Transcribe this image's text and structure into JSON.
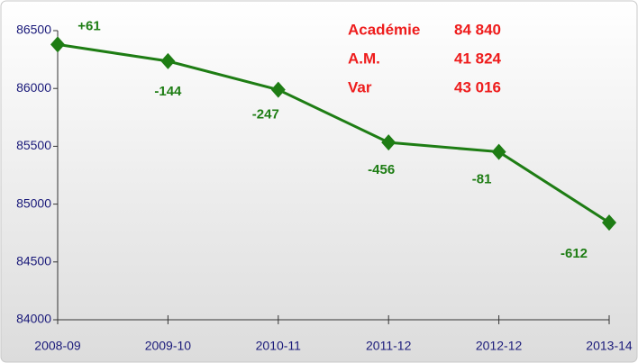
{
  "chart_data": {
    "type": "line",
    "categories": [
      "2008-09",
      "2009-10",
      "2010-11",
      "2011-12",
      "2012-12",
      "2013-14"
    ],
    "series": [
      {
        "name": "Académie",
        "color": "#1e7d14",
        "values": [
          86380,
          86236,
          85989,
          85533,
          85452,
          84840
        ]
      }
    ],
    "annotations": [
      "+61",
      "-144",
      "-247",
      "-456",
      "-81",
      "-612"
    ],
    "info": [
      {
        "label": "Académie",
        "value": "84 840"
      },
      {
        "label": "A.M.",
        "value": "41 824"
      },
      {
        "label": "Var",
        "value": "43 016"
      }
    ],
    "ylim": [
      84000,
      86500
    ],
    "yticks": [
      84000,
      84500,
      85000,
      85500,
      86000,
      86500
    ],
    "grid": false
  }
}
